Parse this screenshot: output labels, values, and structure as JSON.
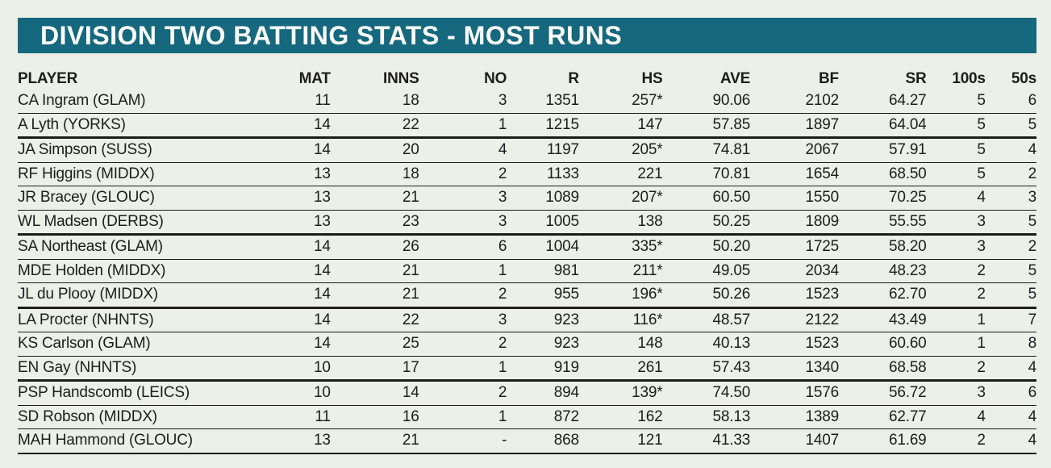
{
  "page": {
    "bg": "#EDF0E7"
  },
  "header": {
    "title": "DIVISION TWO BATTING STATS - MOST RUNS",
    "bg": "#15687D",
    "text_color": "#FFFFFF"
  },
  "chart_data": {
    "type": "table",
    "title": "DIVISION TWO BATTING STATS - MOST RUNS",
    "columns": [
      "PLAYER",
      "MAT",
      "INNS",
      "NO",
      "R",
      "HS",
      "AVE",
      "BF",
      "SR",
      "100s",
      "50s"
    ],
    "rows": [
      [
        "CA Ingram (GLAM)",
        "11",
        "18",
        "3",
        "1351",
        "257*",
        "90.06",
        "2102",
        "64.27",
        "5",
        "6"
      ],
      [
        "A Lyth (YORKS)",
        "14",
        "22",
        "1",
        "1215",
        "147",
        "57.85",
        "1897",
        "64.04",
        "5",
        "5"
      ],
      [
        "JA Simpson (SUSS)",
        "14",
        "20",
        "4",
        "1197",
        "205*",
        "74.81",
        "2067",
        "57.91",
        "5",
        "4"
      ],
      [
        "RF Higgins (MIDDX)",
        "13",
        "18",
        "2",
        "1133",
        "221",
        "70.81",
        "1654",
        "68.50",
        "5",
        "2"
      ],
      [
        "JR Bracey (GLOUC)",
        "13",
        "21",
        "3",
        "1089",
        "207*",
        "60.50",
        "1550",
        "70.25",
        "4",
        "3"
      ],
      [
        "WL Madsen (DERBS)",
        "13",
        "23",
        "3",
        "1005",
        "138",
        "50.25",
        "1809",
        "55.55",
        "3",
        "5"
      ],
      [
        "SA Northeast (GLAM)",
        "14",
        "26",
        "6",
        "1004",
        "335*",
        "50.20",
        "1725",
        "58.20",
        "3",
        "2"
      ],
      [
        "MDE Holden (MIDDX)",
        "14",
        "21",
        "1",
        "981",
        "211*",
        "49.05",
        "2034",
        "48.23",
        "2",
        "5"
      ],
      [
        "JL du Plooy (MIDDX)",
        "14",
        "21",
        "2",
        "955",
        "196*",
        "50.26",
        "1523",
        "62.70",
        "2",
        "5"
      ],
      [
        "LA Procter (NHNTS)",
        "14",
        "22",
        "3",
        "923",
        "116*",
        "48.57",
        "2122",
        "43.49",
        "1",
        "7"
      ],
      [
        "KS Carlson (GLAM)",
        "14",
        "25",
        "2",
        "923",
        "148",
        "40.13",
        "1523",
        "60.60",
        "1",
        "8"
      ],
      [
        "EN Gay (NHNTS)",
        "10",
        "17",
        "1",
        "919",
        "261",
        "57.43",
        "1340",
        "68.58",
        "2",
        "4"
      ],
      [
        "PSP Handscomb (LEICS)",
        "10",
        "14",
        "2",
        "894",
        "139*",
        "74.50",
        "1576",
        "56.72",
        "3",
        "6"
      ],
      [
        "SD Robson (MIDDX)",
        "11",
        "16",
        "1",
        "872",
        "162",
        "58.13",
        "1389",
        "62.77",
        "4",
        "4"
      ],
      [
        "MAH Hammond (GLOUC)",
        "13",
        "21",
        "-",
        "868",
        "121",
        "41.33",
        "1407",
        "61.69",
        "2",
        "4"
      ]
    ],
    "group_separators_after_rows": [
      1,
      5,
      8,
      11
    ],
    "legend_position": "none",
    "grid": "horizontal-row-separators"
  }
}
